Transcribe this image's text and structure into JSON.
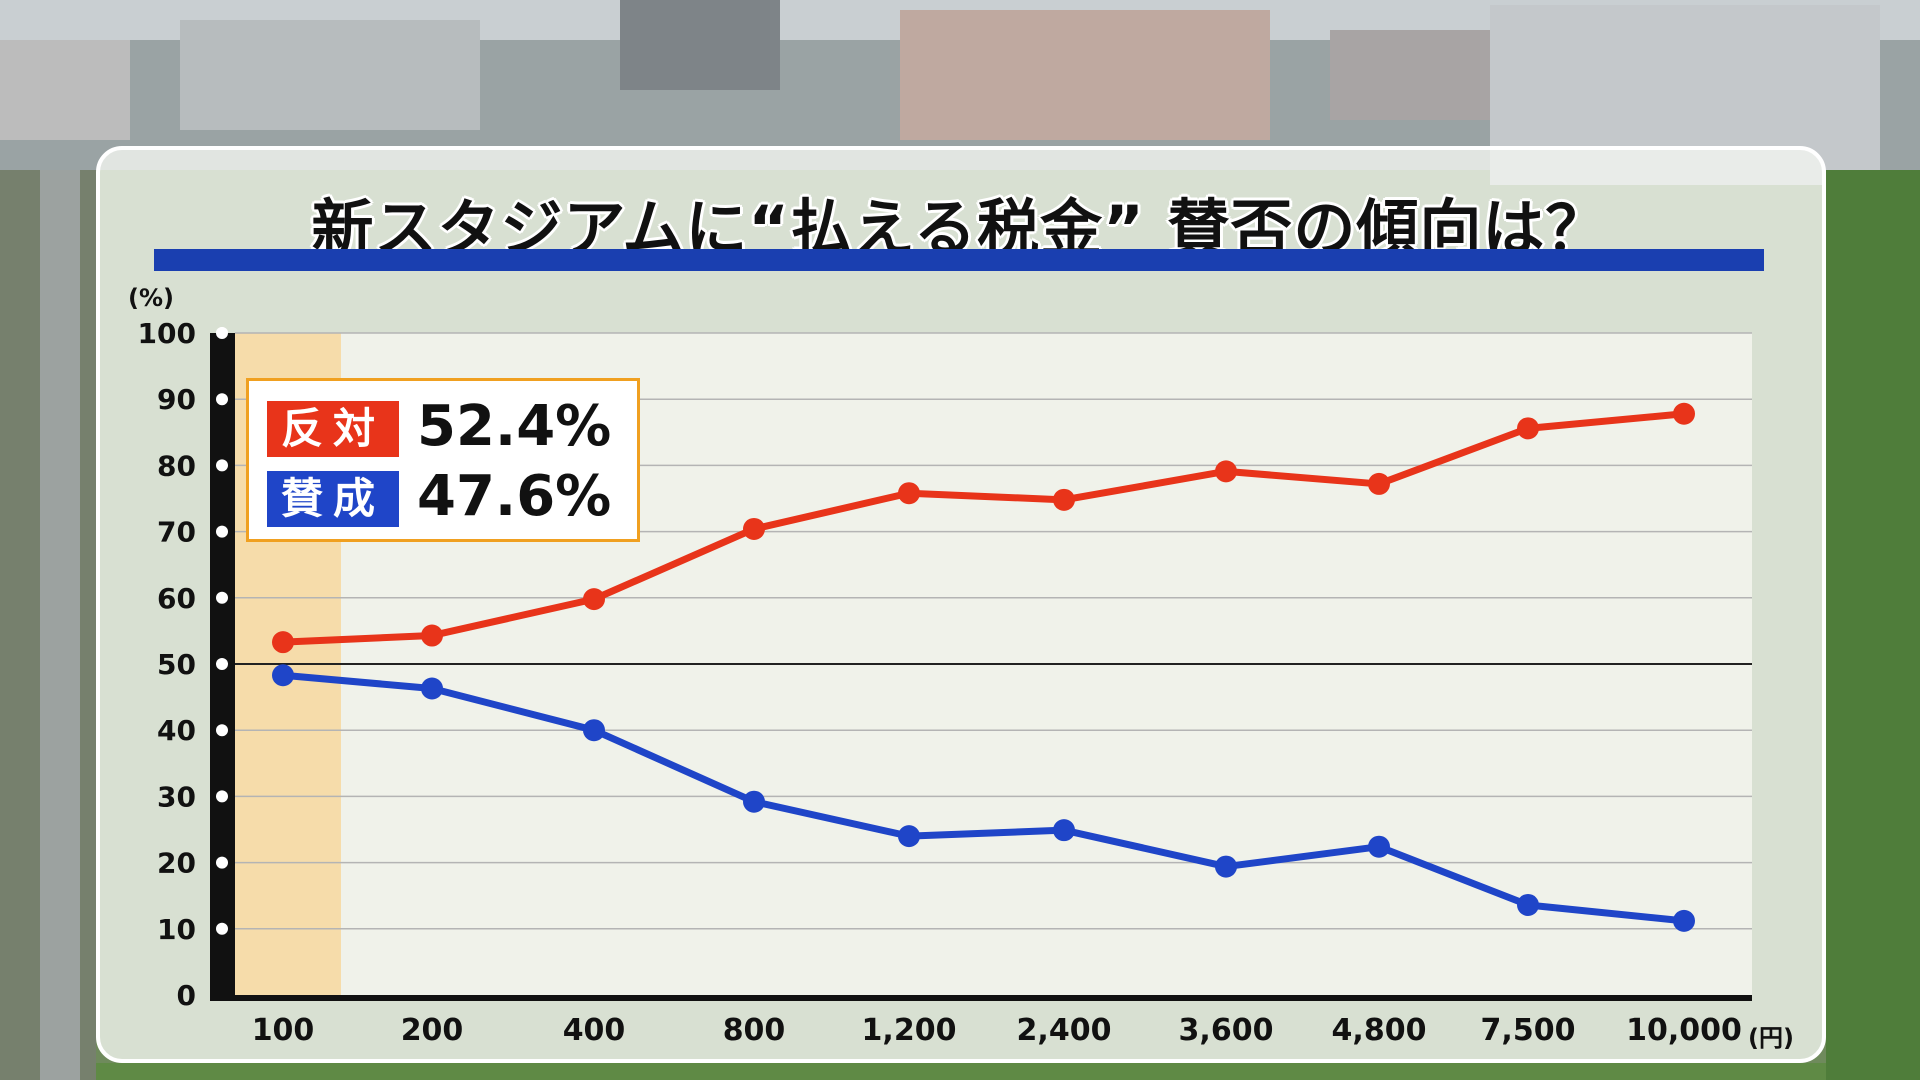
{
  "title": "新スタジアムに“払える税金” 賛否の傾向は？",
  "colors": {
    "oppose": "#e8341a",
    "support": "#1f45c8",
    "title_bar": "#1a3fb0",
    "highlight": "#f6d9a3",
    "legend_border": "#f0a020"
  },
  "legend": {
    "oppose_label": "反対",
    "oppose_value": "52.4%",
    "support_label": "賛成",
    "support_value": "47.6%"
  },
  "chart_data": {
    "type": "line",
    "ylabel": "(%)",
    "xunit": "(円)",
    "ylim": [
      0,
      100
    ],
    "yticks": [
      0,
      10,
      20,
      30,
      40,
      50,
      60,
      70,
      80,
      90,
      100
    ],
    "categories": [
      "100",
      "200",
      "400",
      "800",
      "1,200",
      "2,400",
      "3,600",
      "4,800",
      "7,500",
      "10,000"
    ],
    "highlighted_category": "100",
    "series": [
      {
        "name": "反対",
        "color": "#e8341a",
        "values": [
          53.3,
          54.3,
          59.8,
          70.4,
          75.8,
          74.8,
          79.1,
          77.2,
          85.6,
          87.8
        ]
      },
      {
        "name": "賛成",
        "color": "#1f45c8",
        "values": [
          48.3,
          46.3,
          40.0,
          29.2,
          24.0,
          24.9,
          19.4,
          22.4,
          13.6,
          11.2
        ]
      }
    ],
    "grid": true
  }
}
